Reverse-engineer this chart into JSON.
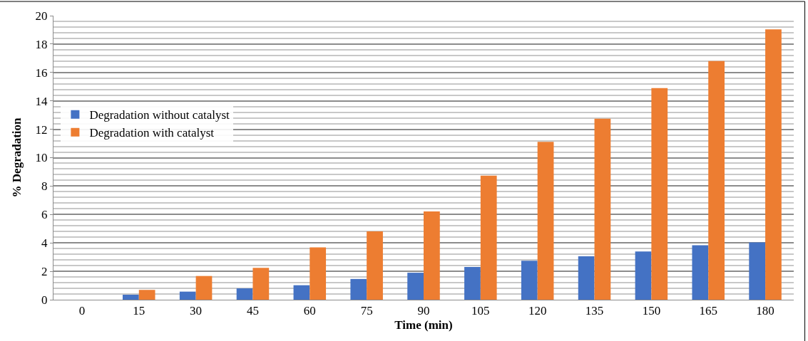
{
  "chart_data": {
    "type": "bar",
    "xlabel": "Time (min)",
    "ylabel": "% Degradation",
    "categories": [
      "0",
      "15",
      "30",
      "45",
      "60",
      "75",
      "90",
      "105",
      "120",
      "135",
      "150",
      "165",
      "180"
    ],
    "series": [
      {
        "name": "Degradation without catalyst",
        "color": "#4472c4",
        "values": [
          0,
          0.35,
          0.57,
          0.8,
          1.02,
          1.46,
          1.9,
          2.31,
          2.75,
          3.06,
          3.39,
          3.83,
          4.04
        ]
      },
      {
        "name": "Degradation with catalyst",
        "color": "#ed7d31",
        "values": [
          0,
          0.69,
          1.67,
          2.24,
          3.69,
          4.81,
          6.22,
          8.73,
          11.12,
          12.75,
          14.9,
          16.8,
          19.04
        ]
      }
    ],
    "ylim": [
      0,
      20
    ],
    "yticks": [
      0,
      2,
      4,
      6,
      8,
      10,
      12,
      14,
      16,
      18,
      20
    ],
    "grid": "y",
    "legend": "left"
  }
}
